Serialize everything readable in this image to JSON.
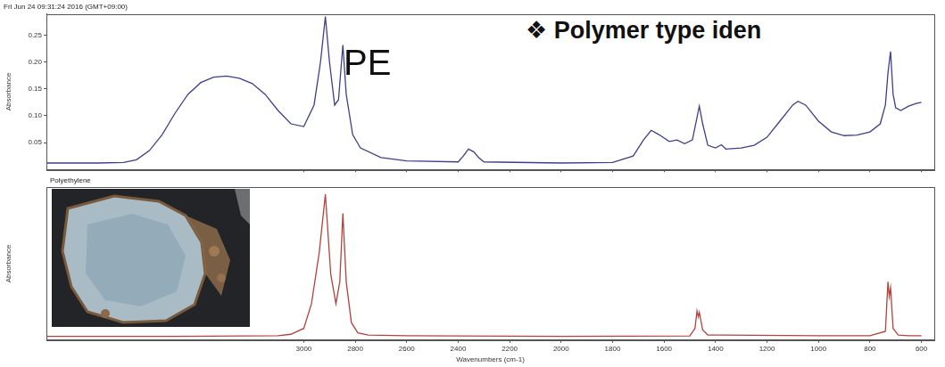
{
  "chart_data": [
    {
      "type": "line",
      "title": "Fri Jun 24 09:31:24 2016 (GMT+09:00)",
      "annotations": [
        "PE",
        "❖ Polymer type iden"
      ],
      "y_label": "Absorbance",
      "x": [
        4000,
        3800,
        3700,
        3650,
        3600,
        3550,
        3500,
        3450,
        3400,
        3350,
        3300,
        3250,
        3200,
        3150,
        3100,
        3050,
        3000,
        2960,
        2935,
        2916,
        2900,
        2880,
        2865,
        2848,
        2835,
        2810,
        2780,
        2700,
        2600,
        2400,
        2380,
        2360,
        2340,
        2320,
        2300,
        2000,
        1800,
        1720,
        1680,
        1650,
        1620,
        1580,
        1550,
        1520,
        1490,
        1475,
        1463,
        1450,
        1430,
        1400,
        1377,
        1360,
        1300,
        1250,
        1200,
        1150,
        1100,
        1080,
        1050,
        1000,
        950,
        900,
        850,
        800,
        760,
        740,
        730,
        720,
        710,
        700,
        680,
        650,
        620,
        600
      ],
      "values": [
        0.012,
        0.012,
        0.013,
        0.018,
        0.035,
        0.065,
        0.105,
        0.14,
        0.162,
        0.172,
        0.174,
        0.17,
        0.16,
        0.14,
        0.11,
        0.085,
        0.08,
        0.12,
        0.2,
        0.285,
        0.2,
        0.12,
        0.13,
        0.232,
        0.14,
        0.065,
        0.04,
        0.022,
        0.016,
        0.014,
        0.025,
        0.038,
        0.033,
        0.022,
        0.014,
        0.012,
        0.013,
        0.025,
        0.055,
        0.073,
        0.065,
        0.052,
        0.055,
        0.048,
        0.055,
        0.09,
        0.118,
        0.085,
        0.045,
        0.04,
        0.046,
        0.038,
        0.04,
        0.045,
        0.06,
        0.09,
        0.12,
        0.127,
        0.12,
        0.09,
        0.07,
        0.063,
        0.064,
        0.07,
        0.085,
        0.12,
        0.18,
        0.22,
        0.14,
        0.115,
        0.11,
        0.118,
        0.123,
        0.125
      ],
      "color": "#3e3e8e",
      "xlim": [
        4000,
        550
      ],
      "xticks": [
        3000,
        2800,
        2600,
        2400,
        2200,
        2000,
        1800,
        1600,
        1400,
        1200,
        1000,
        800,
        600
      ],
      "ylim": [
        0,
        0.29
      ],
      "yticks": [
        0.05,
        {
          "value": 0.1,
          "label": "0.10"
        },
        0.15,
        {
          "value": 0.2,
          "label": "0.20"
        },
        0.25
      ],
      "grid": false,
      "tick_labels": "y"
    },
    {
      "type": "line",
      "annotations": [
        "Polyethylene"
      ],
      "x_label": "Wavenumbers (cm-1)",
      "y_label": "Absorbance",
      "x": [
        4000,
        3500,
        3100,
        3050,
        3000,
        2970,
        2940,
        2916,
        2895,
        2875,
        2860,
        2848,
        2835,
        2815,
        2790,
        2750,
        2600,
        2000,
        1500,
        1480,
        1472,
        1467,
        1463,
        1450,
        1430,
        1370,
        1000,
        800,
        740,
        730,
        725,
        720,
        710,
        690,
        650,
        600
      ],
      "values": [
        0.025,
        0.026,
        0.03,
        0.04,
        0.08,
        0.25,
        0.6,
        1.0,
        0.45,
        0.25,
        0.4,
        0.87,
        0.4,
        0.12,
        0.05,
        0.035,
        0.03,
        0.025,
        0.028,
        0.08,
        0.2,
        0.16,
        0.19,
        0.07,
        0.035,
        0.035,
        0.03,
        0.03,
        0.06,
        0.4,
        0.3,
        0.36,
        0.08,
        0.035,
        0.03,
        0.03
      ],
      "color": "#b5413c",
      "xlim": [
        4000,
        550
      ],
      "xticks": [
        3000,
        2800,
        2600,
        2400,
        2200,
        2000,
        1800,
        1600,
        1400,
        1200,
        1000,
        800,
        600
      ],
      "ylim": [
        0,
        1.05
      ],
      "yticks": [],
      "grid": false,
      "tick_labels": "x"
    }
  ]
}
